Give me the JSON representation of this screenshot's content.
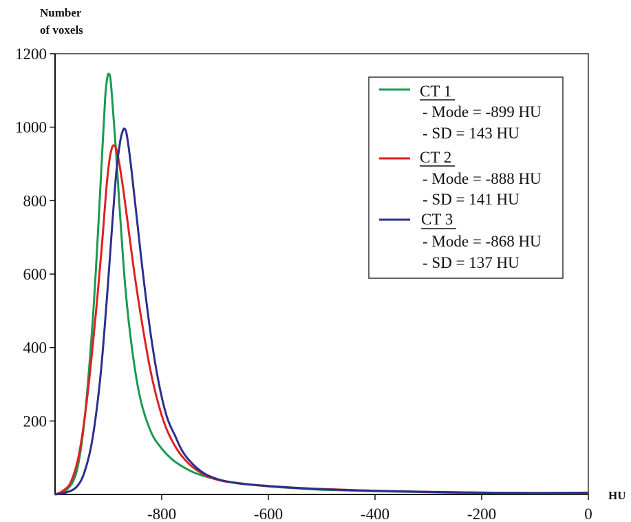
{
  "chart_data": {
    "type": "line",
    "ylabel_line1": "Number",
    "ylabel_line2": "of voxels",
    "xlabel": "HU",
    "xlim": [
      -1000,
      0
    ],
    "ylim": [
      0,
      1200
    ],
    "x_ticks": [
      -800,
      -600,
      -400,
      -200,
      0
    ],
    "y_ticks": [
      200,
      400,
      600,
      800,
      1000,
      1200
    ],
    "x_tick_labels": [
      "-800",
      "-600",
      "-400",
      "-200",
      "0"
    ],
    "y_tick_labels": [
      "200",
      "400",
      "600",
      "800",
      "1000",
      "1200"
    ],
    "legend_position": "top-right",
    "series": [
      {
        "name": "CT 1",
        "mode_text": "- Mode = -899 HU",
        "sd_text": "- SD = 143 HU",
        "color": "#1a9a50",
        "x": [
          -1000,
          -980,
          -960,
          -945,
          -930,
          -920,
          -912,
          -906,
          -902,
          -899,
          -896,
          -892,
          -886,
          -878,
          -868,
          -855,
          -840,
          -820,
          -800,
          -780,
          -760,
          -740,
          -720,
          -700,
          -680,
          -650,
          -600,
          -550,
          -500,
          -400,
          -300,
          -200,
          -100,
          0
        ],
        "y": [
          0,
          10,
          60,
          200,
          460,
          700,
          920,
          1080,
          1135,
          1145,
          1130,
          1060,
          940,
          760,
          560,
          390,
          260,
          170,
          125,
          95,
          75,
          60,
          50,
          42,
          36,
          30,
          22,
          17,
          13,
          9,
          6,
          4,
          3,
          3
        ]
      },
      {
        "name": "CT 2",
        "mode_text": "- Mode = -888 HU",
        "sd_text": "- SD = 141 HU",
        "color": "#e02020",
        "x": [
          -1000,
          -985,
          -970,
          -955,
          -940,
          -925,
          -912,
          -904,
          -898,
          -893,
          -889,
          -885,
          -880,
          -872,
          -862,
          -850,
          -835,
          -820,
          -805,
          -790,
          -770,
          -750,
          -730,
          -710,
          -690,
          -660,
          -620,
          -560,
          -500,
          -400,
          -300,
          -200,
          -100,
          0
        ],
        "y": [
          0,
          10,
          35,
          110,
          260,
          470,
          680,
          830,
          910,
          945,
          950,
          940,
          905,
          830,
          720,
          590,
          450,
          330,
          240,
          175,
          120,
          85,
          62,
          47,
          38,
          31,
          25,
          19,
          15,
          10,
          7,
          5,
          4,
          4
        ]
      },
      {
        "name": "CT 3",
        "mode_text": "- Mode = -868 HU",
        "sd_text": "- SD = 137 HU",
        "color": "#2b2f8c",
        "x": [
          -1000,
          -980,
          -960,
          -945,
          -930,
          -915,
          -903,
          -893,
          -885,
          -878,
          -873,
          -869,
          -865,
          -858,
          -848,
          -835,
          -820,
          -805,
          -790,
          -775,
          -760,
          -740,
          -720,
          -700,
          -680,
          -650,
          -600,
          -550,
          -500,
          -400,
          -300,
          -200,
          -100,
          0
        ],
        "y": [
          0,
          5,
          20,
          60,
          150,
          320,
          530,
          730,
          880,
          960,
          990,
          995,
          975,
          900,
          770,
          600,
          430,
          300,
          210,
          160,
          115,
          80,
          57,
          44,
          36,
          29,
          23,
          18,
          14,
          10,
          7,
          5,
          4,
          5
        ]
      }
    ]
  }
}
